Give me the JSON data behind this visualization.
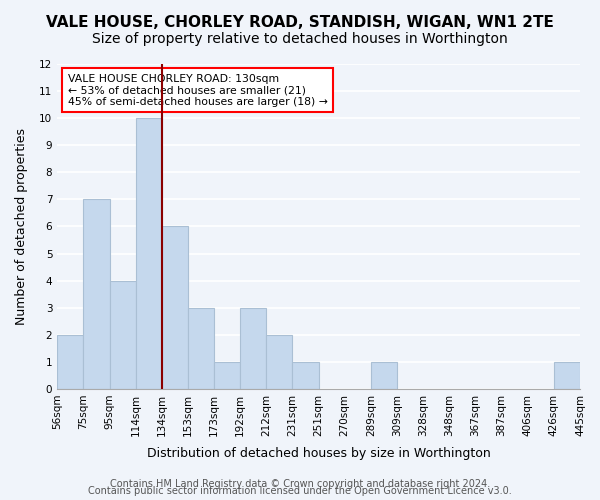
{
  "title": "VALE HOUSE, CHORLEY ROAD, STANDISH, WIGAN, WN1 2TE",
  "subtitle": "Size of property relative to detached houses in Worthington",
  "xlabel": "Distribution of detached houses by size in Worthington",
  "ylabel": "Number of detached properties",
  "bar_labels": [
    "56sqm",
    "75sqm",
    "95sqm",
    "114sqm",
    "134sqm",
    "153sqm",
    "173sqm",
    "192sqm",
    "212sqm",
    "231sqm",
    "251sqm",
    "270sqm",
    "289sqm",
    "309sqm",
    "328sqm",
    "348sqm",
    "367sqm",
    "387sqm",
    "406sqm",
    "426sqm",
    "445sqm"
  ],
  "bar_values": [
    2,
    7,
    4,
    10,
    6,
    3,
    1,
    3,
    2,
    1,
    0,
    0,
    1,
    0,
    0,
    0,
    0,
    0,
    0,
    1
  ],
  "bar_color": "#c5d8ed",
  "bar_edge_color": "#aabfd4",
  "red_line_index": 4,
  "ylim": [
    0,
    12
  ],
  "annotation_title": "VALE HOUSE CHORLEY ROAD: 130sqm",
  "annotation_line1": "← 53% of detached houses are smaller (21)",
  "annotation_line2": "45% of semi-detached houses are larger (18) →",
  "footer1": "Contains HM Land Registry data © Crown copyright and database right 2024.",
  "footer2": "Contains public sector information licensed under the Open Government Licence v3.0.",
  "background_color": "#f0f4fa",
  "grid_color": "#ffffff",
  "title_fontsize": 11,
  "subtitle_fontsize": 10,
  "axis_label_fontsize": 9,
  "tick_fontsize": 7.5,
  "footer_fontsize": 7
}
